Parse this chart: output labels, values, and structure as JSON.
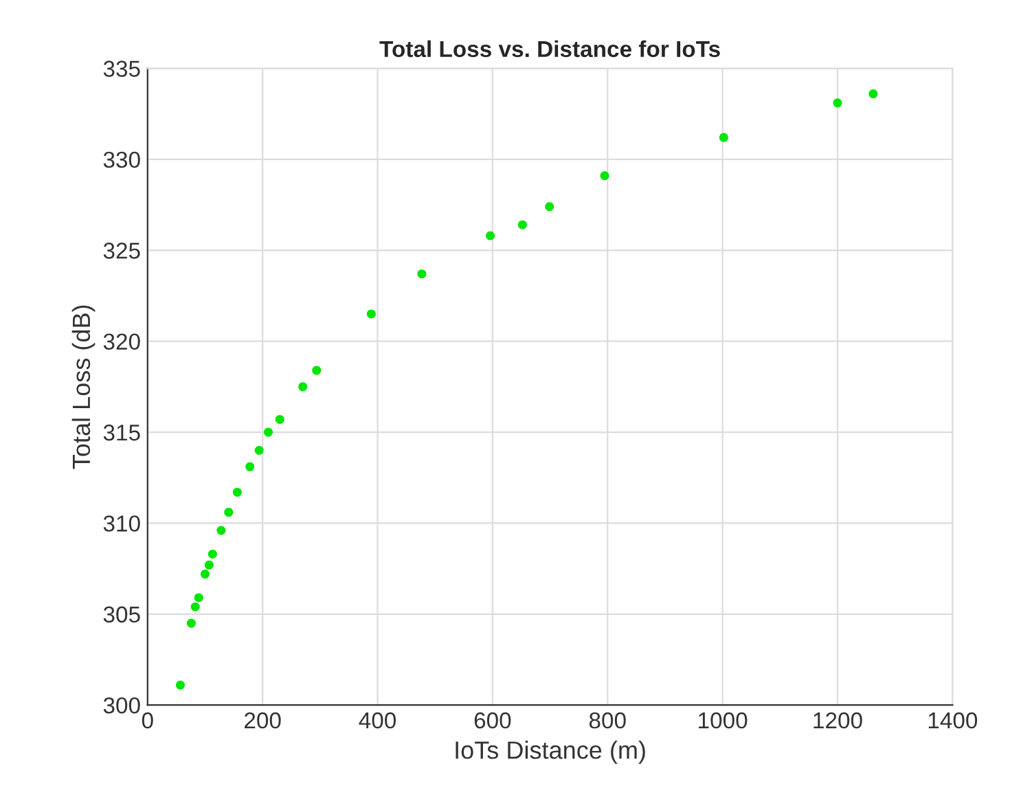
{
  "chart_data": {
    "type": "scatter",
    "title": "Total Loss vs. Distance for IoTs",
    "xlabel": "IoTs Distance (m)",
    "ylabel": "Total Loss (dB)",
    "x": [
      57,
      76,
      83,
      89,
      100,
      107,
      113,
      128,
      141,
      156,
      178,
      194,
      210,
      230,
      270,
      294,
      389,
      477,
      596,
      652,
      699,
      795,
      1002,
      1200,
      1262
    ],
    "series": [
      {
        "color": "#00e600",
        "values": [
          301.1,
          304.5,
          305.4,
          305.9,
          307.2,
          307.7,
          308.3,
          309.6,
          310.6,
          311.7,
          313.1,
          314.0,
          315.0,
          315.7,
          317.5,
          318.4,
          321.5,
          323.7,
          325.8,
          326.4,
          327.4,
          329.1,
          331.2,
          333.1,
          333.6
        ]
      }
    ],
    "xlim": [
      0,
      1400
    ],
    "ylim": [
      300,
      335
    ],
    "xticks": [
      0,
      200,
      400,
      600,
      800,
      1000,
      1200,
      1400
    ],
    "yticks": [
      300,
      305,
      310,
      315,
      320,
      325,
      330,
      335
    ],
    "grid": true,
    "marker": "circle"
  }
}
